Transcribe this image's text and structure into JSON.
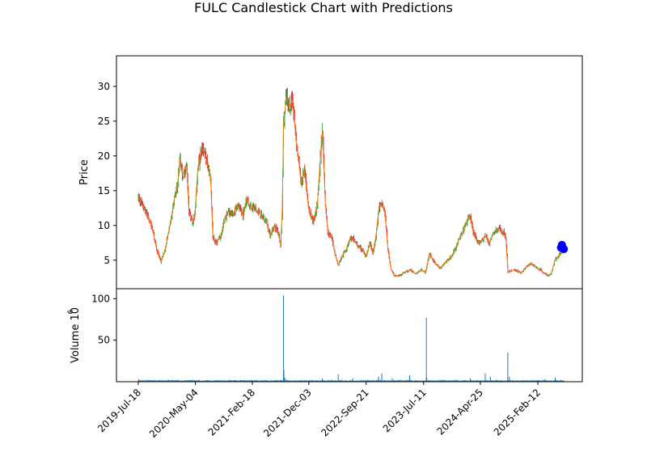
{
  "chart_data": [
    {
      "type": "candlestick",
      "title": "FULC Candlestick Chart with Predictions",
      "ylabel": "Price",
      "xlabel": "",
      "ylim": [
        0.9,
        34.4
      ],
      "yticks": [
        5,
        10,
        15,
        20,
        25,
        30
      ],
      "grid": false,
      "up_color": "#2ca02c",
      "down_color": "#d62728",
      "line_color": "#ff7f0e",
      "prediction_color": "#0000ff",
      "close_series": {
        "name": "",
        "points": [
          [
            "2019-07-18",
            14.0
          ],
          [
            "2019-08-01",
            13.2
          ],
          [
            "2019-09-01",
            11.5
          ],
          [
            "2019-10-01",
            9.2
          ],
          [
            "2019-10-20",
            6.5
          ],
          [
            "2019-11-10",
            4.8
          ],
          [
            "2019-12-01",
            6.5
          ],
          [
            "2020-01-01",
            11.0
          ],
          [
            "2020-01-15",
            13.5
          ],
          [
            "2020-02-01",
            15.5
          ],
          [
            "2020-02-15",
            19.5
          ],
          [
            "2020-03-01",
            17.0
          ],
          [
            "2020-03-20",
            18.5
          ],
          [
            "2020-04-01",
            12.0
          ],
          [
            "2020-04-20",
            10.5
          ],
          [
            "2020-05-01",
            11.5
          ],
          [
            "2020-05-15",
            18.0
          ],
          [
            "2020-06-01",
            20.5
          ],
          [
            "2020-06-15",
            21.0
          ],
          [
            "2020-07-01",
            19.0
          ],
          [
            "2020-07-20",
            17.0
          ],
          [
            "2020-08-01",
            8.0
          ],
          [
            "2020-08-20",
            7.5
          ],
          [
            "2020-09-10",
            8.5
          ],
          [
            "2020-10-01",
            11.0
          ],
          [
            "2020-10-20",
            12.0
          ],
          [
            "2020-11-15",
            11.5
          ],
          [
            "2020-12-01",
            13.0
          ],
          [
            "2021-01-01",
            11.5
          ],
          [
            "2021-01-20",
            14.0
          ],
          [
            "2021-02-01",
            13.0
          ],
          [
            "2021-03-01",
            12.5
          ],
          [
            "2021-04-01",
            11.5
          ],
          [
            "2021-05-01",
            10.5
          ],
          [
            "2021-05-20",
            8.5
          ],
          [
            "2021-06-10",
            10.0
          ],
          [
            "2021-07-01",
            9.0
          ],
          [
            "2021-07-12",
            7.2
          ],
          [
            "2021-07-20",
            12.0
          ],
          [
            "2021-07-27",
            24.5
          ],
          [
            "2021-08-10",
            28.5
          ],
          [
            "2021-08-25",
            27.0
          ],
          [
            "2021-09-10",
            28.0
          ],
          [
            "2021-10-01",
            22.0
          ],
          [
            "2021-10-25",
            16.0
          ],
          [
            "2021-11-10",
            18.0
          ],
          [
            "2021-12-01",
            12.5
          ],
          [
            "2021-12-25",
            10.5
          ],
          [
            "2022-01-15",
            13.0
          ],
          [
            "2022-02-01",
            20.5
          ],
          [
            "2022-02-10",
            23.5
          ],
          [
            "2022-02-25",
            13.0
          ],
          [
            "2022-03-10",
            9.0
          ],
          [
            "2022-04-01",
            8.0
          ],
          [
            "2022-04-15",
            6.0
          ],
          [
            "2022-05-01",
            4.3
          ],
          [
            "2022-05-20",
            5.5
          ],
          [
            "2022-06-10",
            6.5
          ],
          [
            "2022-07-01",
            8.2
          ],
          [
            "2022-07-20",
            8.0
          ],
          [
            "2022-08-10",
            7.0
          ],
          [
            "2022-09-01",
            6.5
          ],
          [
            "2022-09-20",
            5.5
          ],
          [
            "2022-10-10",
            7.5
          ],
          [
            "2022-10-25",
            6.0
          ],
          [
            "2022-11-10",
            8.5
          ],
          [
            "2022-11-25",
            12.5
          ],
          [
            "2022-12-10",
            13.0
          ],
          [
            "2022-12-25",
            12.0
          ],
          [
            "2023-01-10",
            6.5
          ],
          [
            "2023-01-25",
            3.8
          ],
          [
            "2023-02-10",
            2.8
          ],
          [
            "2023-03-01",
            2.7
          ],
          [
            "2023-04-01",
            3.2
          ],
          [
            "2023-05-01",
            3.6
          ],
          [
            "2023-06-01",
            3.1
          ],
          [
            "2023-07-01",
            3.6
          ],
          [
            "2023-07-20",
            3.2
          ],
          [
            "2023-08-10",
            6.0
          ],
          [
            "2023-09-01",
            4.8
          ],
          [
            "2023-10-01",
            3.8
          ],
          [
            "2023-11-01",
            4.8
          ],
          [
            "2023-12-01",
            5.6
          ],
          [
            "2024-01-01",
            7.5
          ],
          [
            "2024-02-01",
            9.5
          ],
          [
            "2024-03-01",
            11.5
          ],
          [
            "2024-03-20",
            9.0
          ],
          [
            "2024-04-10",
            7.5
          ],
          [
            "2024-05-01",
            7.8
          ],
          [
            "2024-05-20",
            8.5
          ],
          [
            "2024-06-10",
            7.5
          ],
          [
            "2024-07-01",
            9.0
          ],
          [
            "2024-08-01",
            9.5
          ],
          [
            "2024-09-01",
            8.5
          ],
          [
            "2024-09-12",
            3.3
          ],
          [
            "2024-10-15",
            3.6
          ],
          [
            "2024-11-20",
            3.2
          ],
          [
            "2024-12-20",
            4.2
          ],
          [
            "2025-01-10",
            4.5
          ],
          [
            "2025-02-01",
            4.0
          ],
          [
            "2025-03-01",
            3.5
          ],
          [
            "2025-04-01",
            2.8
          ],
          [
            "2025-04-20",
            3.0
          ],
          [
            "2025-05-10",
            5.0
          ],
          [
            "2025-06-01",
            5.8
          ],
          [
            "2025-06-20",
            6.6
          ]
        ]
      },
      "predictions": {
        "name": "",
        "points": [
          [
            "2025-06-10",
            6.8
          ],
          [
            "2025-06-15",
            7.2
          ],
          [
            "2025-06-20",
            6.7
          ],
          [
            "2025-06-25",
            6.6
          ]
        ]
      }
    },
    {
      "type": "bar",
      "ylabel": "Volume",
      "ylabel_exponent": "10",
      "ylabel_exponent_power": "6",
      "ylim": [
        0,
        112
      ],
      "yticks": [
        50,
        100
      ],
      "xticklabels": [
        "2019-Jul-18",
        "2020-May-04",
        "2021-Feb-18",
        "2021-Dec-03",
        "2022-Sep-21",
        "2023-Jul-11",
        "2024-Apr-25",
        "2025-Feb-12"
      ],
      "bar_color": "#1f77b4",
      "spikes": [
        [
          "2019-07-20",
          3
        ],
        [
          "2020-05-01",
          1.5
        ],
        [
          "2020-09-01",
          1.5
        ],
        [
          "2021-07-27",
          104
        ],
        [
          "2021-07-29",
          14
        ],
        [
          "2021-08-02",
          5
        ],
        [
          "2021-08-10",
          3
        ],
        [
          "2022-02-09",
          4
        ],
        [
          "2022-05-02",
          9
        ],
        [
          "2022-07-15",
          4
        ],
        [
          "2022-11-23",
          6
        ],
        [
          "2022-12-10",
          10
        ],
        [
          "2023-02-01",
          4
        ],
        [
          "2023-05-01",
          8
        ],
        [
          "2023-07-25",
          77
        ],
        [
          "2023-07-27",
          5
        ],
        [
          "2024-03-05",
          4
        ],
        [
          "2024-05-20",
          10
        ],
        [
          "2024-06-15",
          6
        ],
        [
          "2024-09-12",
          35
        ],
        [
          "2024-09-20",
          6
        ],
        [
          "2025-03-20",
          3
        ],
        [
          "2025-05-12",
          5
        ]
      ],
      "baseline_volume": 1.0
    }
  ]
}
